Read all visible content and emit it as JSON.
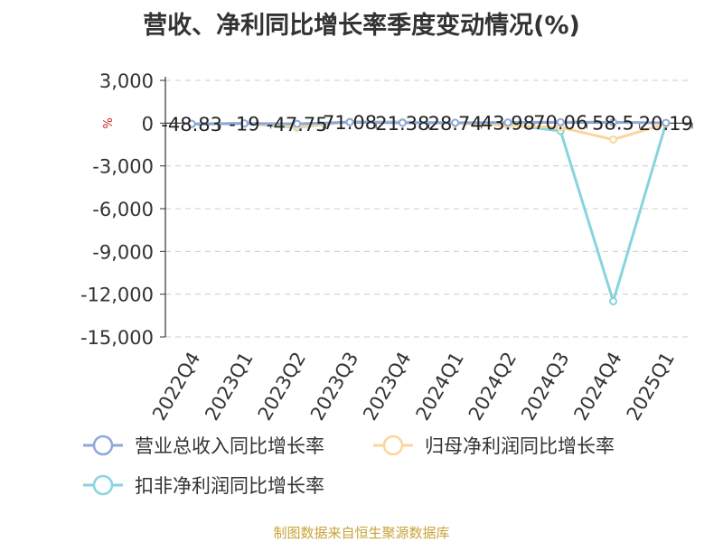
{
  "chart_data": {
    "type": "line",
    "title": "营收、净利同比增长率季度变动情况(%)",
    "ylabel": "%",
    "xlabel": "",
    "categories": [
      "2022Q4",
      "2023Q1",
      "2023Q2",
      "2023Q3",
      "2023Q4",
      "2024Q1",
      "2024Q2",
      "2024Q3",
      "2024Q4",
      "2025Q1"
    ],
    "ylim": [
      -15000,
      3000
    ],
    "yticks": [
      3000,
      0,
      -3000,
      -6000,
      -9000,
      -12000,
      -15000
    ],
    "ytick_labels": [
      "3,000",
      "0",
      "-3,000",
      "-6,000",
      "-9,000",
      "-12,000",
      "-15,000"
    ],
    "grid": true,
    "legend_position": "bottom-left",
    "series": [
      {
        "name": "营业总收入同比增长率",
        "color": "#8fa8d8",
        "values": [
          -48.83,
          -19,
          -47.75,
          71.08,
          21.38,
          28.74,
          43.98,
          70.06,
          58.5,
          20.19
        ]
      },
      {
        "name": "归母净利润同比增长率",
        "color": "#f9d79b",
        "values": [
          -60,
          -20,
          -250,
          100,
          50,
          0,
          -150,
          -300,
          -1150,
          -50
        ]
      },
      {
        "name": "扣非净利润同比增长率",
        "color": "#88d4dc",
        "values": [
          -80,
          -30,
          -300,
          100,
          80,
          10,
          -100,
          -550,
          -12500,
          -30
        ]
      }
    ],
    "data_labels": [
      "-48.83",
      "-19",
      "-47.75",
      "71.08",
      "21.38",
      "28.74",
      "43.98",
      "70.06",
      "58.5",
      "20.19"
    ]
  },
  "footer": {
    "source": "制图数据来自恒生聚源数据库"
  }
}
